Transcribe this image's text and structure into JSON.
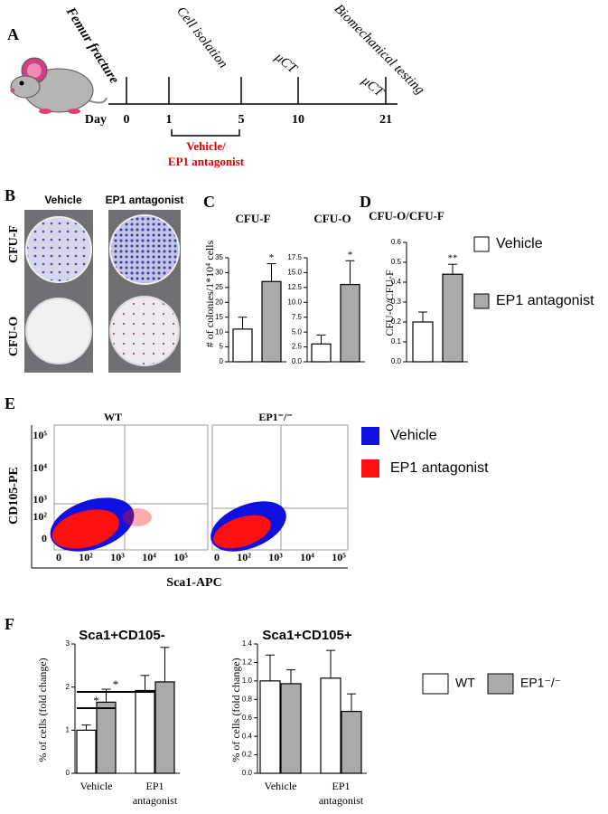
{
  "panels": [
    "A",
    "B",
    "C",
    "D",
    "E",
    "F"
  ],
  "timeline": {
    "days": [
      0,
      1,
      5,
      10,
      21
    ],
    "day_label": "Day",
    "events": [
      "Femur fracture",
      "Cell isolation",
      "μCT",
      "μCT",
      "Biomechanical testing"
    ],
    "treatment": [
      "Vehicle/",
      "EP1 antagonist"
    ]
  },
  "photos": {
    "columns": [
      "Vehicle",
      "EP1 antagonist"
    ],
    "rows": [
      "CFU-F",
      "CFU-O"
    ]
  },
  "flow": {
    "titles": [
      "WT",
      "EP1⁻/⁻"
    ],
    "ylabel": "CD105-PE",
    "xlabel": "Sca1-APC",
    "yticks": [
      "10⁵",
      "10⁴",
      "10³",
      "10²",
      "0"
    ],
    "xticks": [
      "0",
      "10²",
      "10³",
      "10⁴",
      "10⁵"
    ],
    "legend": [
      {
        "name": "Vehicle",
        "color": "#1010e0"
      },
      {
        "name": "EP1 antagonist",
        "color": "#ff1010"
      }
    ]
  },
  "chart_data": [
    {
      "type": "bar",
      "title": "CFU-F",
      "ylabel": "# of colonies/1*10⁴ cells",
      "ylim": [
        0,
        35
      ],
      "yticks": [
        0,
        5,
        10,
        15,
        20,
        25,
        30,
        35
      ],
      "series": [
        {
          "name": "Vehicle",
          "color": "#ffffff",
          "values": [
            11
          ],
          "errors": [
            4
          ]
        },
        {
          "name": "EP1 antagonist",
          "color": "#aaaaaa",
          "values": [
            27
          ],
          "errors": [
            6
          ]
        }
      ],
      "significance": "*"
    },
    {
      "type": "bar",
      "title": "CFU-O",
      "ylim": [
        0,
        17.5
      ],
      "yticks": [
        {
          "value": 0,
          "label": "0.0"
        },
        2.5,
        {
          "value": 5,
          "label": "5.0"
        },
        7.5,
        {
          "value": 10,
          "label": "10.0"
        },
        12.5,
        {
          "value": 15,
          "label": "15.0"
        },
        17.5
      ],
      "series": [
        {
          "name": "Vehicle",
          "color": "#ffffff",
          "values": [
            3
          ],
          "errors": [
            1.5
          ]
        },
        {
          "name": "EP1 antagonist",
          "color": "#aaaaaa",
          "values": [
            13
          ],
          "errors": [
            4
          ]
        }
      ],
      "significance": "*"
    },
    {
      "type": "bar",
      "title": "CFU-O/CFU-F",
      "ylabel": "CFU-O/CFU-F",
      "ylim": [
        0,
        0.6
      ],
      "yticks": [
        {
          "value": 0,
          "label": "0.0"
        },
        0.1,
        0.2,
        0.3,
        0.4,
        0.5,
        0.6
      ],
      "series": [
        {
          "name": "Vehicle",
          "color": "#ffffff",
          "values": [
            0.2
          ],
          "errors": [
            0.05
          ]
        },
        {
          "name": "EP1 antagonist",
          "color": "#aaaaaa",
          "values": [
            0.44
          ],
          "errors": [
            0.05
          ]
        }
      ],
      "significance": "**"
    },
    {
      "type": "bar",
      "title": "Sca1+CD105-",
      "ylabel": "% of cells (fold change)",
      "categories": [
        "Vehicle",
        "EP1 antagonist"
      ],
      "ylim": [
        0,
        3
      ],
      "yticks": [
        0,
        1,
        2,
        3
      ],
      "series": [
        {
          "name": "WT",
          "color": "#ffffff",
          "values": [
            1.0,
            1.92
          ],
          "errors": [
            0.12,
            0.35
          ]
        },
        {
          "name": "EP1⁻/⁻",
          "color": "#aaaaaa",
          "values": [
            1.65,
            2.12
          ],
          "errors": [
            0.3,
            0.8
          ]
        }
      ],
      "annotations": [
        "*",
        "*"
      ]
    },
    {
      "type": "bar",
      "title": "Sca1+CD105+",
      "ylabel": "% of cells (fold change)",
      "categories": [
        "Vehicle",
        "EP1 antagonist"
      ],
      "ylim": [
        0,
        1.4
      ],
      "yticks": [
        {
          "value": 0,
          "label": "0.0"
        },
        0.2,
        0.4,
        0.6,
        0.8,
        {
          "value": 1,
          "label": "1.0"
        },
        1.2,
        1.4
      ],
      "series": [
        {
          "name": "WT",
          "color": "#ffffff",
          "values": [
            1.0,
            1.03
          ],
          "errors": [
            0.28,
            0.3
          ]
        },
        {
          "name": "EP1⁻/⁻",
          "color": "#aaaaaa",
          "values": [
            0.97,
            0.67
          ],
          "errors": [
            0.15,
            0.19
          ]
        }
      ]
    }
  ]
}
